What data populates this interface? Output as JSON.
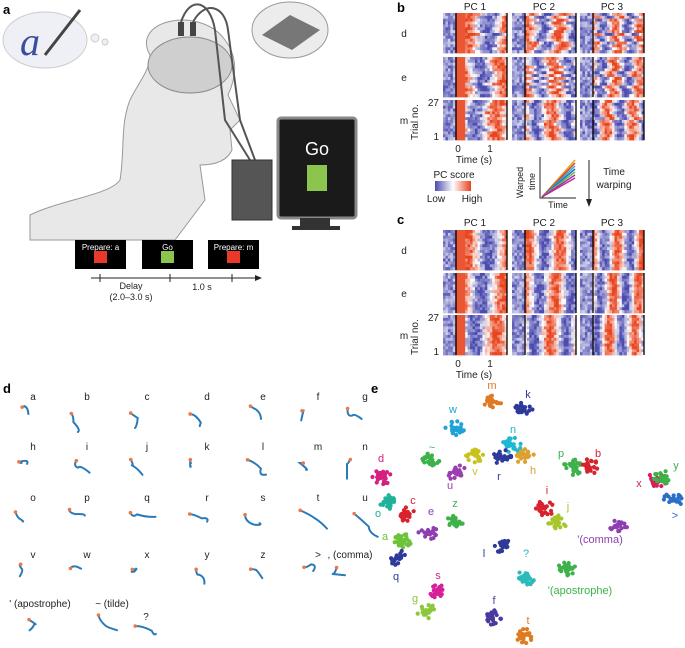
{
  "panels": {
    "a": {
      "label": "a",
      "bubble_letter": "a",
      "monitor_text": "Go",
      "timeline": {
        "boxes": [
          {
            "text": "Prepare: a",
            "square_color": "#e8392b"
          },
          {
            "text": "Go",
            "square_color": "#8cc54e"
          },
          {
            "text": "Prepare: m",
            "square_color": "#e8392b"
          }
        ],
        "delay_label": "Delay",
        "delay_range": "(2.0–3.0 s)",
        "interval_label": "1.0 s"
      }
    },
    "b": {
      "label": "b",
      "columns": [
        "PC 1",
        "PC 2",
        "PC 3"
      ],
      "rows": [
        "d",
        "e",
        "m"
      ],
      "y_label": "Trial no.",
      "y_ticks": [
        "27",
        "1"
      ],
      "x_ticks": [
        "0",
        "1"
      ],
      "x_label": "Time (s)",
      "colorbar": {
        "title": "PC score",
        "low": "Low",
        "high": "High",
        "colors": [
          "#4b4bb0",
          "#ffffff",
          "#e8441e"
        ]
      },
      "warp_inset": {
        "y_label": "Warped time",
        "x_label": "Time"
      },
      "arrow_label": [
        "Time",
        "warping"
      ]
    },
    "c": {
      "label": "c",
      "columns": [
        "PC 1",
        "PC 2",
        "PC 3"
      ],
      "rows": [
        "d",
        "e",
        "m"
      ],
      "y_label": "Trial no.",
      "y_ticks": [
        "27",
        "1"
      ],
      "x_ticks": [
        "0",
        "1"
      ],
      "x_label": "Time (s)"
    },
    "d": {
      "label": "d",
      "trace_color": "#2a7ab8",
      "start_color": "#e8794a",
      "characters": [
        [
          "a",
          "b",
          "c",
          "d",
          "e",
          "f",
          "g"
        ],
        [
          "h",
          "i",
          "j",
          "k",
          "l",
          "m",
          "n"
        ],
        [
          "o",
          "p",
          "q",
          "r",
          "s",
          "t",
          "u"
        ],
        [
          "v",
          "w",
          "x",
          "y",
          "z",
          ">",
          ", (comma)"
        ],
        [
          "' (apostrophe)",
          "~ (tilde)",
          "?"
        ]
      ]
    },
    "e": {
      "label": "e",
      "clusters": [
        {
          "label": "m",
          "color": "#e07a22"
        },
        {
          "label": "k",
          "color": "#2e3a9a"
        },
        {
          "label": "w",
          "color": "#1fa3d6"
        },
        {
          "label": "n",
          "color": "#1fb8d0"
        },
        {
          "label": "~",
          "color": "#3db24a"
        },
        {
          "label": "v",
          "color": "#c9c21e"
        },
        {
          "label": "u",
          "color": "#9b3fb0"
        },
        {
          "label": "r",
          "color": "#2e3a9a"
        },
        {
          "label": "h",
          "color": "#dba232"
        },
        {
          "label": "d",
          "color": "#d6207e"
        },
        {
          "label": "p",
          "color": "#3db24a"
        },
        {
          "label": "b",
          "color": "#d8222d"
        },
        {
          "label": "x",
          "color": "#d6205a"
        },
        {
          "label": "y",
          "color": "#3db24a"
        },
        {
          "label": ">",
          "color": "#2a6ec8"
        },
        {
          "label": "o",
          "color": "#21b29c"
        },
        {
          "label": "c",
          "color": "#d8222d"
        },
        {
          "label": "e",
          "color": "#8d3fb0"
        },
        {
          "label": "z",
          "color": "#3db24a"
        },
        {
          "label": "i",
          "color": "#d8222d"
        },
        {
          "label": "j",
          "color": "#a6c62a"
        },
        {
          "label": "'(comma)",
          "color": "#8d3fb0"
        },
        {
          "label": "a",
          "color": "#6cc23a"
        },
        {
          "label": "q",
          "color": "#2e3a9a"
        },
        {
          "label": "l",
          "color": "#2e3a9a"
        },
        {
          "label": "?",
          "color": "#2bbab8"
        },
        {
          "label": "'(apostrophe)",
          "color": "#3db24a"
        },
        {
          "label": "s",
          "color": "#d6209a"
        },
        {
          "label": "g",
          "color": "#8cc83a"
        },
        {
          "label": "f",
          "color": "#4a3a9e"
        },
        {
          "label": "t",
          "color": "#e07a22"
        }
      ]
    }
  }
}
